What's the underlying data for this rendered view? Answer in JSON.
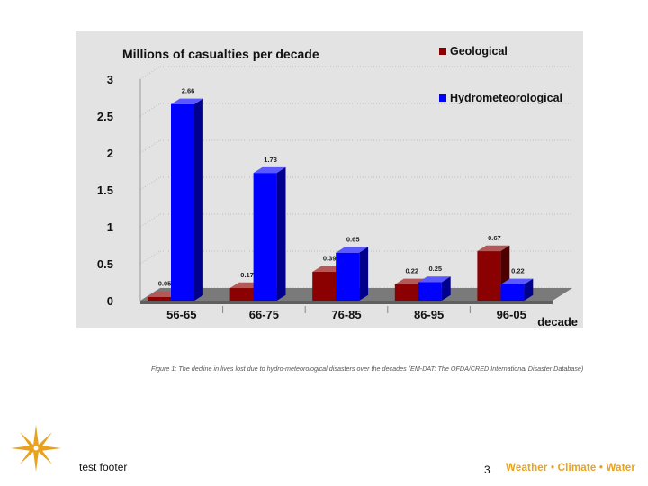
{
  "chart_data": {
    "type": "bar",
    "title": "Millions of casualties per decade",
    "xlabel": "decade",
    "ylabel": "",
    "categories": [
      "56-65",
      "66-75",
      "76-85",
      "86-95",
      "96-05"
    ],
    "series": [
      {
        "name": "Geological",
        "color": "#8b0000",
        "values": [
          0.05,
          0.17,
          0.39,
          0.22,
          0.67
        ]
      },
      {
        "name": "Hydrometeorological",
        "color": "#0000ff",
        "values": [
          2.66,
          1.73,
          0.65,
          0.25,
          0.22
        ]
      }
    ],
    "ylim": [
      0,
      3
    ],
    "yticks": [
      "0",
      "0.5",
      "1",
      "1.5",
      "2",
      "2.5",
      "3"
    ],
    "grid": true,
    "legend": "top-right",
    "style": "3d-bars"
  },
  "caption": "Figure 1: The decline in lives lost due to hydro-meteorological disasters over the decades (EM-DAT: The OFDA/CRED International Disaster Database)",
  "footer": {
    "text": "test footer",
    "page_number": "3",
    "brand": "Weather • Climate • Water"
  },
  "colors": {
    "panel_background": "#e3e3e3",
    "brand": "#e8a21d"
  },
  "icons": {
    "logo": "compass-star-icon"
  }
}
